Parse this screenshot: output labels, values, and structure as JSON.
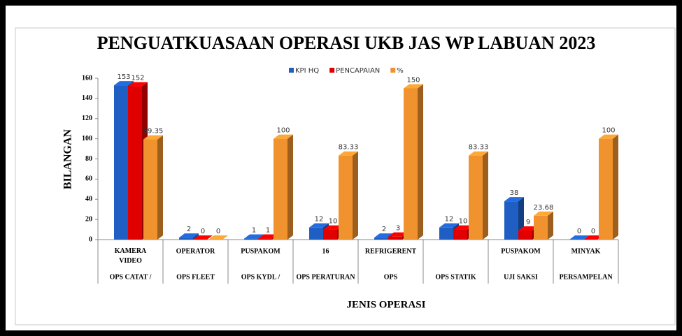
{
  "chart_data": {
    "type": "bar3d",
    "title": "PENGUATKUASAAN OPERASI UKB JAS WP LABUAN 2023",
    "ylabel": "BILANGAN",
    "xlabel": "JENIS OPERASI",
    "categories": [
      "KAMERA VIDEO",
      "OPERATOR",
      "PUSPAKOM",
      "16",
      "REFRIGERENT",
      null,
      "PUSPAKOM",
      "MINYAK"
    ],
    "category_groups": [
      "OPS CATAT /",
      "OPS FLEET",
      "OPS KYDL /",
      "OPS PERATURAN",
      "OPS",
      "OPS STATIK",
      "UJI SAKSI",
      "PERSAMPELAN"
    ],
    "series": [
      {
        "name": "KPI HQ",
        "color": "#1f5fc4",
        "values": [
          153,
          2,
          1,
          12,
          2,
          12,
          38,
          0
        ]
      },
      {
        "name": "PENCAPAIAN",
        "color": "#e00000",
        "values": [
          152,
          0,
          1,
          10,
          3,
          10,
          9,
          0
        ]
      },
      {
        "name": "%",
        "color": "#f0922e",
        "values": [
          99.35,
          0,
          100,
          83.33,
          150,
          83.33,
          23.68,
          100
        ]
      }
    ],
    "ylim": [
      0,
      160
    ],
    "yticks": [
      0,
      20,
      40,
      60,
      80,
      100,
      120,
      140,
      160
    ],
    "legend": "top"
  }
}
